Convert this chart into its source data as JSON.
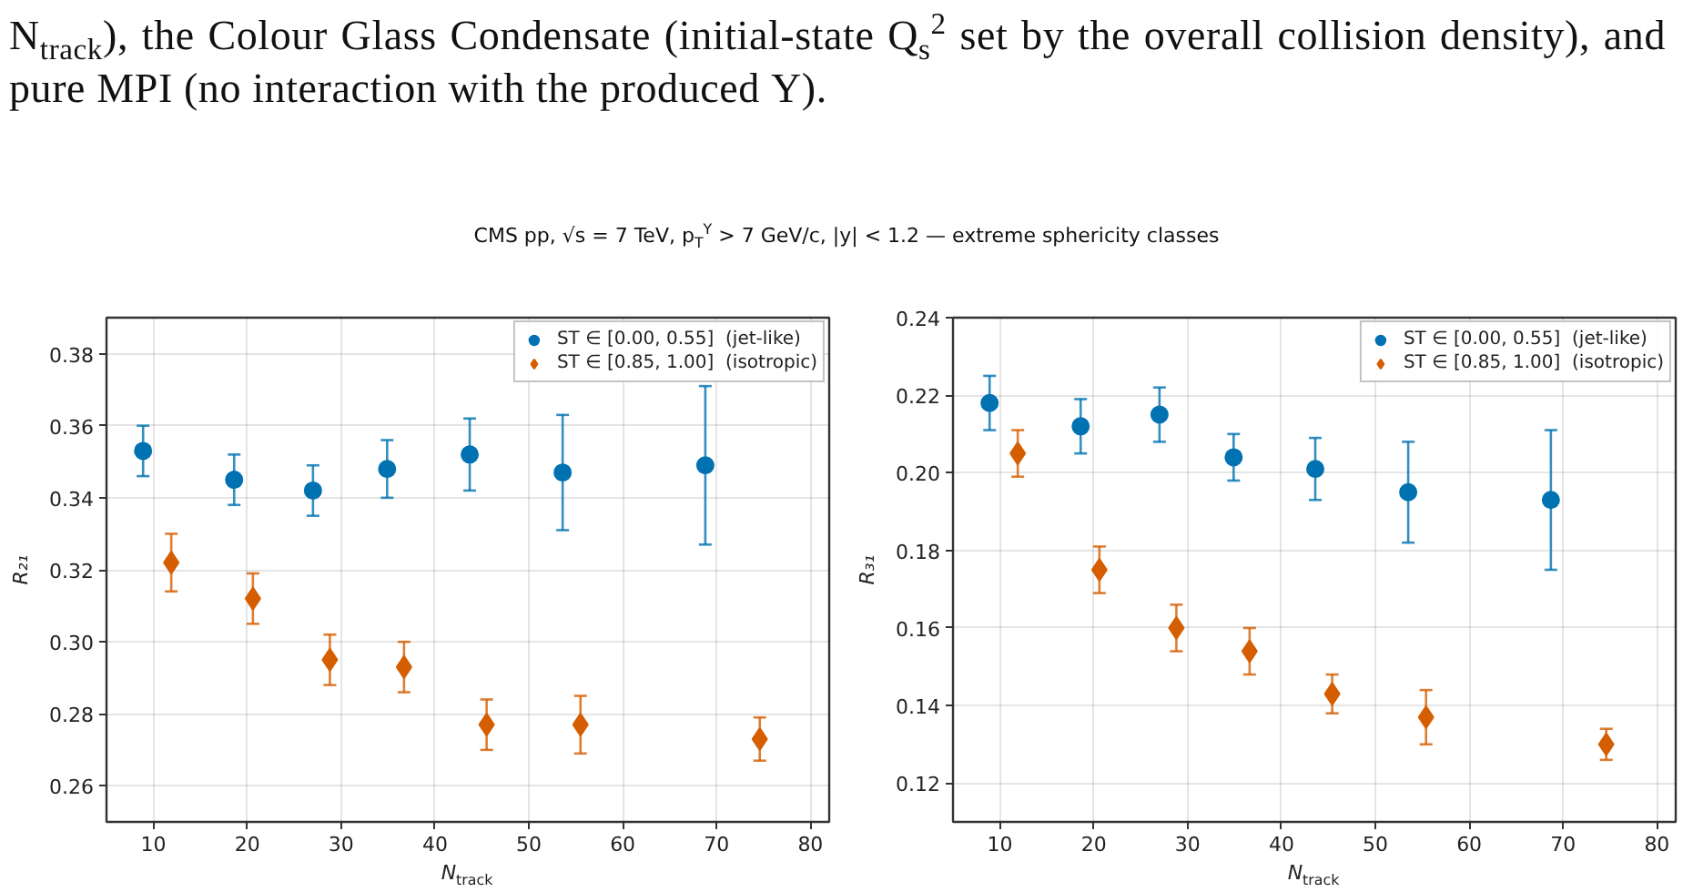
{
  "chart_data": [
    {
      "type": "other",
      "annotations": [
        "N$_{track}$), the Colour Glass Condensate (initial-state Q$_{s}$$^{2}$ set by the overall collision density), and pure MPI (no interaction with the produced Υ)."
      ],
      "title": "CMS pp, √s = 7 TeV, p$_{T}$$^{Υ}$ > 7 GeV/c, |y| < 1.2 — extreme sphericity classes"
    },
    {
      "type": "scatter",
      "xlabel": "N$_{track}$",
      "ylabel": "R₂₁",
      "xlim": [
        5,
        82
      ],
      "ylim": [
        0.25,
        0.39
      ],
      "xticks": [
        10,
        20,
        30,
        40,
        50,
        60,
        70,
        80
      ],
      "yticks": [
        0.26,
        0.28,
        {
          "value": 0.3,
          "label": "0.30"
        },
        0.32,
        0.34,
        0.36,
        0.38
      ],
      "grid": true,
      "legend": "top right",
      "series": [
        {
          "name": "ST ∈ [0.00, 0.55]  (jet-like)",
          "color": "#0072b2",
          "marker": "circle",
          "x": [
            8.9,
            18.6,
            27.0,
            34.9,
            43.7,
            53.6,
            68.8
          ],
          "values": [
            0.353,
            0.345,
            0.342,
            0.348,
            0.352,
            0.347,
            0.349
          ],
          "errors": [
            0.007,
            0.007,
            0.007,
            0.008,
            0.01,
            0.016,
            0.022
          ]
        },
        {
          "name": "ST ∈ [0.85, 1.00]  (isotropic)",
          "color": "#d55e00",
          "marker": "diamond",
          "x": [
            11.9,
            20.6,
            28.8,
            36.7,
            45.5,
            55.5,
            74.6
          ],
          "values": [
            0.322,
            0.312,
            0.295,
            0.293,
            0.277,
            0.277,
            0.273
          ],
          "errors": [
            0.008,
            0.007,
            0.007,
            0.007,
            0.007,
            0.008,
            0.006
          ]
        }
      ]
    },
    {
      "type": "scatter",
      "xlabel": "N$_{track}$",
      "ylabel": "R₃₁",
      "xlim": [
        5,
        82
      ],
      "ylim": [
        0.11,
        0.24
      ],
      "xticks": [
        10,
        20,
        30,
        40,
        50,
        60,
        70,
        80
      ],
      "yticks": [
        0.12,
        0.14,
        0.16,
        0.18,
        {
          "value": 0.2,
          "label": "0.20"
        },
        0.22,
        0.24
      ],
      "grid": true,
      "legend": "top right",
      "series": [
        {
          "name": "ST ∈ [0.00, 0.55]  (jet-like)",
          "color": "#0072b2",
          "marker": "circle",
          "x": [
            8.9,
            18.6,
            27.0,
            34.9,
            43.6,
            53.5,
            68.7
          ],
          "values": [
            0.218,
            0.212,
            0.215,
            0.204,
            0.201,
            0.195,
            0.193
          ],
          "errors": [
            0.007,
            0.007,
            0.007,
            0.006,
            0.008,
            0.013,
            0.018
          ]
        },
        {
          "name": "ST ∈ [0.85, 1.00]  (isotropic)",
          "color": "#d55e00",
          "marker": "diamond",
          "x": [
            11.9,
            20.6,
            28.8,
            36.6,
            45.4,
            55.4,
            74.6
          ],
          "values": [
            0.205,
            0.175,
            0.16,
            0.154,
            0.143,
            0.137,
            0.13
          ],
          "errors": [
            0.006,
            0.006,
            0.006,
            0.006,
            0.005,
            0.007,
            0.004
          ]
        }
      ]
    }
  ]
}
